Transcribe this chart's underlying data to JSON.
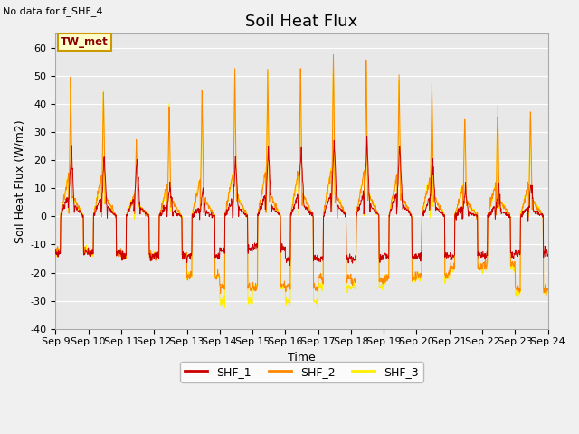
{
  "title": "Soil Heat Flux",
  "ylabel": "Soil Heat Flux (W/m2)",
  "xlabel": "Time",
  "note": "No data for f_SHF_4",
  "legend_box_label": "TW_met",
  "ylim": [
    -40,
    65
  ],
  "yticks": [
    -40,
    -30,
    -20,
    -10,
    0,
    10,
    20,
    30,
    40,
    50,
    60
  ],
  "xtick_labels": [
    "Sep 9",
    "Sep 10",
    "Sep 11",
    "Sep 12",
    "Sep 13",
    "Sep 14",
    "Sep 15",
    "Sep 16",
    "Sep 17",
    "Sep 18",
    "Sep 19",
    "Sep 20",
    "Sep 21",
    "Sep 22",
    "Sep 23",
    "Sep 24"
  ],
  "colors": {
    "SHF_1": "#cc0000",
    "SHF_2": "#ff8800",
    "SHF_3": "#ffee00"
  },
  "background_color": "#e8e8e8",
  "fig_background": "#f0f0f0",
  "title_fontsize": 13,
  "axis_label_fontsize": 9,
  "tick_fontsize": 8
}
